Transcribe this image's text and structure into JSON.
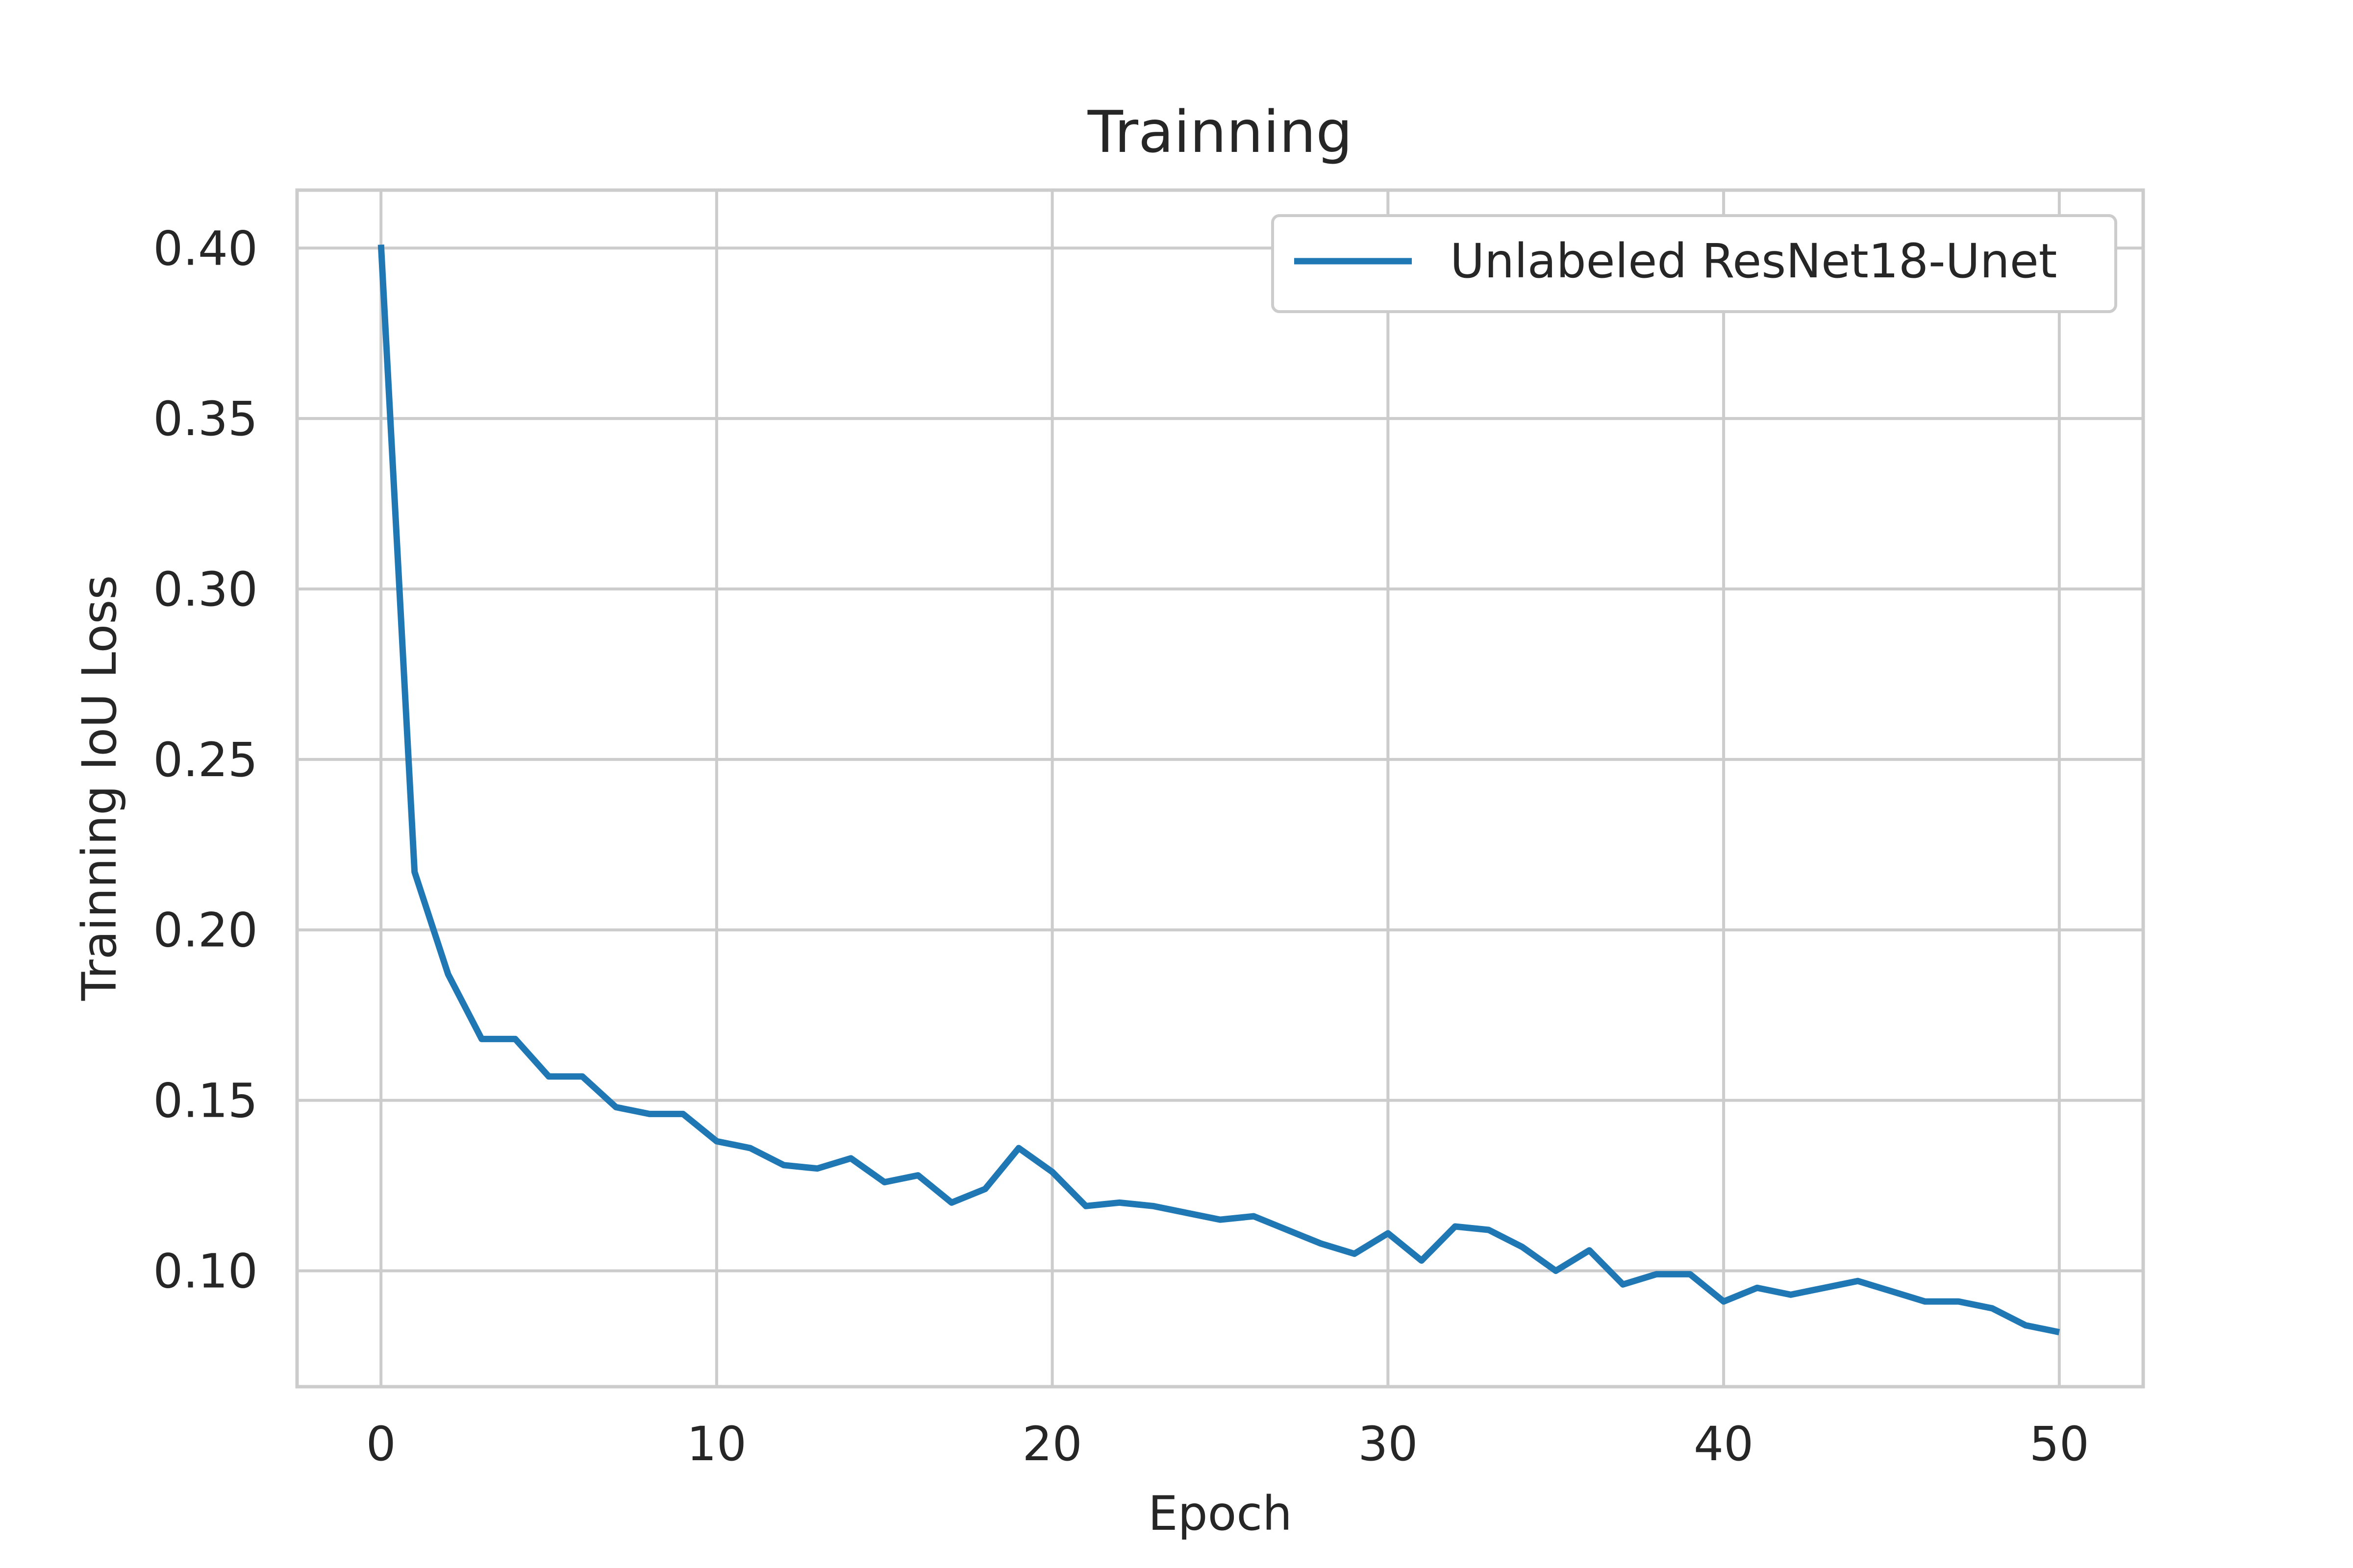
{
  "chart_data": {
    "type": "line",
    "title": "Trainning",
    "xlabel": "Epoch",
    "ylabel": "Trainning IoU Loss",
    "xlim": [
      -2.5,
      52.5
    ],
    "ylim": [
      0.066,
      0.417
    ],
    "xticks": [
      0,
      10,
      20,
      30,
      40,
      50
    ],
    "xtick_labels": [
      "0",
      "10",
      "20",
      "30",
      "40",
      "50"
    ],
    "yticks": [
      0.1,
      0.15,
      0.2,
      0.25,
      0.3,
      0.35,
      0.4
    ],
    "ytick_labels": [
      "0.10",
      "0.15",
      "0.20",
      "0.25",
      "0.30",
      "0.35",
      "0.40"
    ],
    "grid": true,
    "legend_position": "top-right",
    "series": [
      {
        "name": "Unlabeled ResNet18-Unet",
        "color": "#1f77b4",
        "x": [
          0,
          1,
          2,
          3,
          4,
          5,
          6,
          7,
          8,
          9,
          10,
          11,
          12,
          13,
          14,
          15,
          16,
          17,
          18,
          19,
          20,
          21,
          22,
          23,
          24,
          25,
          26,
          27,
          28,
          29,
          30,
          31,
          32,
          33,
          34,
          35,
          36,
          37,
          38,
          39,
          40,
          41,
          42,
          43,
          44,
          45,
          46,
          47,
          48,
          49,
          50
        ],
        "values": [
          0.401,
          0.217,
          0.187,
          0.168,
          0.168,
          0.157,
          0.157,
          0.148,
          0.146,
          0.146,
          0.138,
          0.136,
          0.131,
          0.13,
          0.133,
          0.126,
          0.128,
          0.12,
          0.124,
          0.136,
          0.129,
          0.119,
          0.12,
          0.119,
          0.117,
          0.115,
          0.116,
          0.112,
          0.108,
          0.105,
          0.111,
          0.103,
          0.113,
          0.112,
          0.107,
          0.1,
          0.106,
          0.096,
          0.099,
          0.099,
          0.091,
          0.095,
          0.093,
          0.095,
          0.097,
          0.094,
          0.091,
          0.091,
          0.089,
          0.084,
          0.082
        ]
      }
    ]
  }
}
